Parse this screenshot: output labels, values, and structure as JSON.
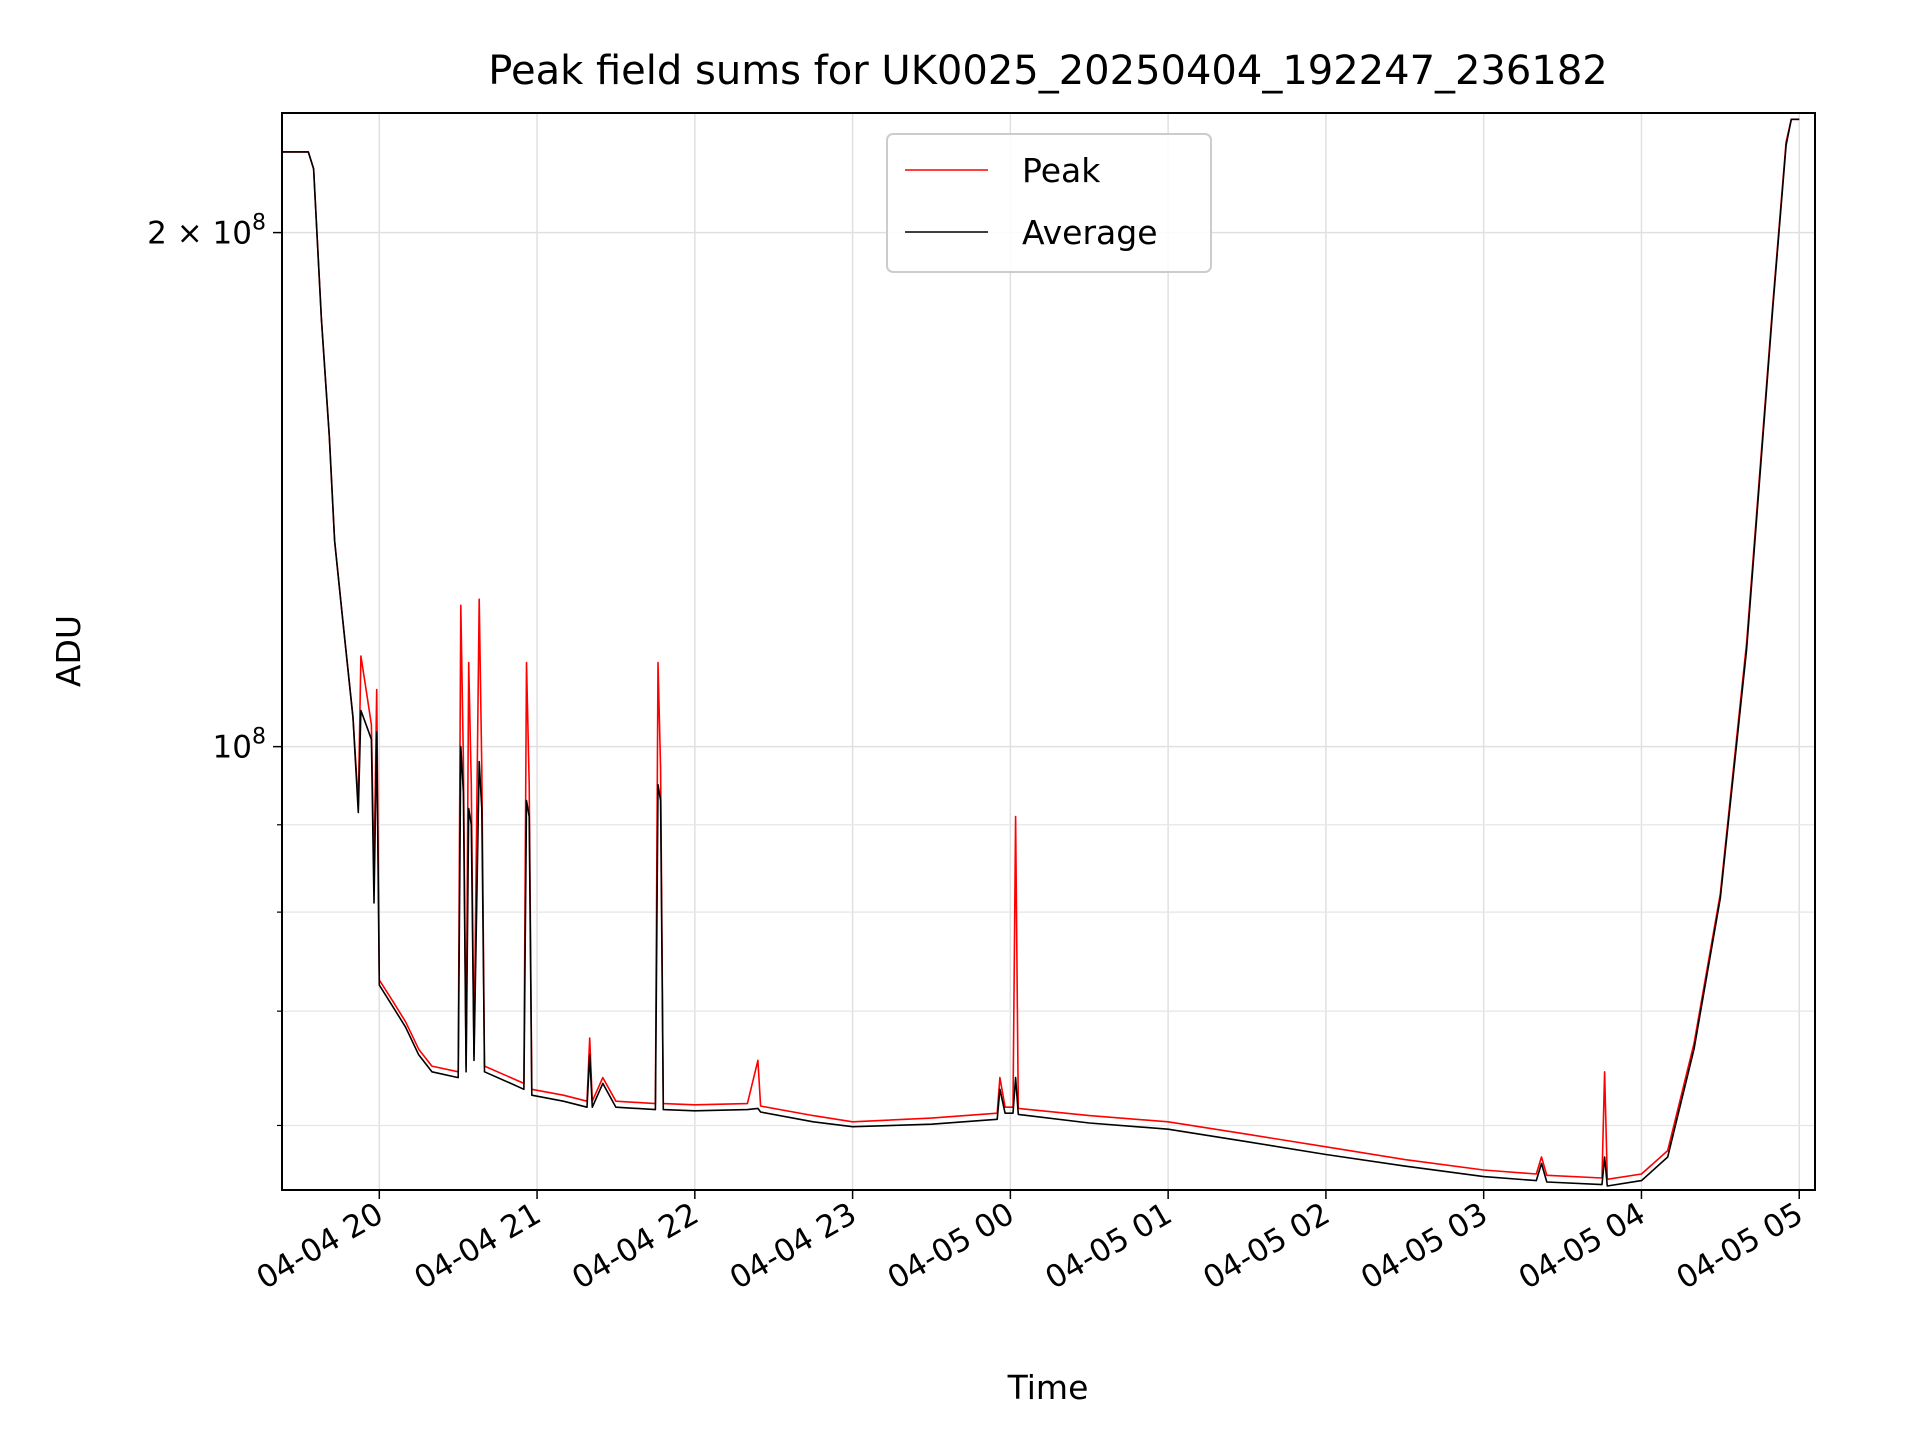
{
  "chart_data": {
    "type": "line",
    "title": "Peak field sums for UK0025_20250404_192247_236182",
    "xlabel": "Time",
    "ylabel": "ADU",
    "yscale": "log",
    "ylim": [
      55000000,
      235000000
    ],
    "xlim": [
      "04-04 19:23",
      "04-05 05:06"
    ],
    "grid": true,
    "legend_position": "top-center",
    "x_ticks": [
      "04-04 20",
      "04-04 21",
      "04-04 22",
      "04-04 23",
      "04-05 00",
      "04-05 01",
      "04-05 02",
      "04-05 03",
      "04-05 04",
      "04-05 05"
    ],
    "y_ticks": [
      {
        "label_base": "10",
        "label_exp": "8",
        "value": 100000000
      },
      {
        "label_prefix": "2 × ",
        "label_base": "10",
        "label_exp": "8",
        "value": 200000000
      }
    ],
    "series": [
      {
        "name": "Peak",
        "color": "#ff0000",
        "points": [
          [
            "04-04 19:23",
            223000000
          ],
          [
            "04-04 19:33",
            223000000
          ],
          [
            "04-04 19:35",
            218000000
          ],
          [
            "04-04 19:38",
            178000000
          ],
          [
            "04-04 19:41",
            152000000
          ],
          [
            "04-04 19:43",
            132000000
          ],
          [
            "04-04 19:46",
            119000000
          ],
          [
            "04-04 19:50",
            104000000
          ],
          [
            "04-04 19:52",
            92500000
          ],
          [
            "04-04 19:53",
            113000000
          ],
          [
            "04-04 19:55",
            108000000
          ],
          [
            "04-04 19:57",
            103000000
          ],
          [
            "04-04 19:58",
            84000000
          ],
          [
            "04-04 19:59",
            108000000
          ],
          [
            "04-04 20:00",
            73000000
          ],
          [
            "04-04 20:05",
            71000000
          ],
          [
            "04-04 20:10",
            69000000
          ],
          [
            "04-04 20:15",
            66500000
          ],
          [
            "04-04 20:20",
            65000000
          ],
          [
            "04-04 20:30",
            64500000
          ],
          [
            "04-04 20:31",
            121000000
          ],
          [
            "04-04 20:32",
            98000000
          ],
          [
            "04-04 20:33",
            65000000
          ],
          [
            "04-04 20:34",
            112000000
          ],
          [
            "04-04 20:35",
            95000000
          ],
          [
            "04-04 20:36",
            66000000
          ],
          [
            "04-04 20:38",
            122000000
          ],
          [
            "04-04 20:39",
            97000000
          ],
          [
            "04-04 20:40",
            65000000
          ],
          [
            "04-04 20:50",
            64000000
          ],
          [
            "04-04 20:55",
            63500000
          ],
          [
            "04-04 20:56",
            112000000
          ],
          [
            "04-04 20:57",
            95000000
          ],
          [
            "04-04 20:58",
            63000000
          ],
          [
            "04-04 21:10",
            62500000
          ],
          [
            "04-04 21:19",
            62000000
          ],
          [
            "04-04 21:20",
            67500000
          ],
          [
            "04-04 21:21",
            62000000
          ],
          [
            "04-04 21:25",
            64000000
          ],
          [
            "04-04 21:30",
            62000000
          ],
          [
            "04-04 21:45",
            61800000
          ],
          [
            "04-04 21:46",
            112000000
          ],
          [
            "04-04 21:47",
            97000000
          ],
          [
            "04-04 21:48",
            61800000
          ],
          [
            "04-04 22:00",
            61700000
          ],
          [
            "04-04 22:20",
            61800000
          ],
          [
            "04-04 22:24",
            65500000
          ],
          [
            "04-04 22:25",
            61600000
          ],
          [
            "04-04 22:45",
            60800000
          ],
          [
            "04-04 23:00",
            60300000
          ],
          [
            "04-04 23:30",
            60600000
          ],
          [
            "04-04 23:55",
            61000000
          ],
          [
            "04-04 23:56",
            64000000
          ],
          [
            "04-04 23:58",
            61500000
          ],
          [
            "04-05 00:01",
            61500000
          ],
          [
            "04-05 00:02",
            91000000
          ],
          [
            "04-05 00:03",
            61400000
          ],
          [
            "04-05 00:30",
            60800000
          ],
          [
            "04-05 01:00",
            60300000
          ],
          [
            "04-05 01:30",
            59300000
          ],
          [
            "04-05 02:00",
            58300000
          ],
          [
            "04-05 02:30",
            57300000
          ],
          [
            "04-05 03:00",
            56500000
          ],
          [
            "04-05 03:20",
            56200000
          ],
          [
            "04-05 03:22",
            57500000
          ],
          [
            "04-05 03:24",
            56100000
          ],
          [
            "04-05 03:45",
            55900000
          ],
          [
            "04-05 03:46",
            64500000
          ],
          [
            "04-05 03:47",
            55800000
          ],
          [
            "04-05 04:00",
            56200000
          ],
          [
            "04-05 04:10",
            58000000
          ],
          [
            "04-05 04:20",
            67000000
          ],
          [
            "04-05 04:30",
            82000000
          ],
          [
            "04-05 04:40",
            115000000
          ],
          [
            "04-05 04:50",
            182000000
          ],
          [
            "04-05 04:55",
            226000000
          ],
          [
            "04-05 04:57",
            233000000
          ],
          [
            "04-05 05:00",
            233000000
          ]
        ]
      },
      {
        "name": "Average",
        "color": "#000000",
        "points": [
          [
            "04-04 19:23",
            223000000
          ],
          [
            "04-04 19:33",
            223000000
          ],
          [
            "04-04 19:35",
            218000000
          ],
          [
            "04-04 19:38",
            178000000
          ],
          [
            "04-04 19:41",
            152000000
          ],
          [
            "04-04 19:43",
            132000000
          ],
          [
            "04-04 19:46",
            119000000
          ],
          [
            "04-04 19:50",
            104000000
          ],
          [
            "04-04 19:52",
            91500000
          ],
          [
            "04-04 19:53",
            105000000
          ],
          [
            "04-04 19:55",
            103000000
          ],
          [
            "04-04 19:57",
            101000000
          ],
          [
            "04-04 19:58",
            81000000
          ],
          [
            "04-04 19:59",
            102000000
          ],
          [
            "04-04 20:00",
            72500000
          ],
          [
            "04-04 20:05",
            70500000
          ],
          [
            "04-04 20:10",
            68500000
          ],
          [
            "04-04 20:15",
            66000000
          ],
          [
            "04-04 20:20",
            64500000
          ],
          [
            "04-04 20:30",
            64000000
          ],
          [
            "04-04 20:31",
            100000000
          ],
          [
            "04-04 20:32",
            94000000
          ],
          [
            "04-04 20:33",
            64500000
          ],
          [
            "04-04 20:34",
            92000000
          ],
          [
            "04-04 20:35",
            90000000
          ],
          [
            "04-04 20:36",
            65500000
          ],
          [
            "04-04 20:38",
            98000000
          ],
          [
            "04-04 20:39",
            92000000
          ],
          [
            "04-04 20:40",
            64500000
          ],
          [
            "04-04 20:50",
            63500000
          ],
          [
            "04-04 20:55",
            63000000
          ],
          [
            "04-04 20:56",
            93000000
          ],
          [
            "04-04 20:57",
            91000000
          ],
          [
            "04-04 20:58",
            62500000
          ],
          [
            "04-04 21:10",
            62000000
          ],
          [
            "04-04 21:19",
            61500000
          ],
          [
            "04-04 21:20",
            66000000
          ],
          [
            "04-04 21:21",
            61500000
          ],
          [
            "04-04 21:25",
            63500000
          ],
          [
            "04-04 21:30",
            61500000
          ],
          [
            "04-04 21:45",
            61300000
          ],
          [
            "04-04 21:46",
            95000000
          ],
          [
            "04-04 21:47",
            93000000
          ],
          [
            "04-04 21:48",
            61300000
          ],
          [
            "04-04 22:00",
            61200000
          ],
          [
            "04-04 22:20",
            61300000
          ],
          [
            "04-04 22:24",
            61400000
          ],
          [
            "04-04 22:25",
            61100000
          ],
          [
            "04-04 22:45",
            60300000
          ],
          [
            "04-04 23:00",
            59900000
          ],
          [
            "04-04 23:30",
            60100000
          ],
          [
            "04-04 23:55",
            60500000
          ],
          [
            "04-04 23:56",
            63000000
          ],
          [
            "04-04 23:58",
            61000000
          ],
          [
            "04-05 00:01",
            61000000
          ],
          [
            "04-05 00:02",
            64000000
          ],
          [
            "04-05 00:03",
            60900000
          ],
          [
            "04-05 00:30",
            60200000
          ],
          [
            "04-05 01:00",
            59700000
          ],
          [
            "04-05 01:30",
            58700000
          ],
          [
            "04-05 02:00",
            57700000
          ],
          [
            "04-05 02:30",
            56800000
          ],
          [
            "04-05 03:00",
            56000000
          ],
          [
            "04-05 03:20",
            55700000
          ],
          [
            "04-05 03:22",
            57000000
          ],
          [
            "04-05 03:24",
            55600000
          ],
          [
            "04-05 03:45",
            55400000
          ],
          [
            "04-05 03:46",
            57500000
          ],
          [
            "04-05 03:47",
            55300000
          ],
          [
            "04-05 04:00",
            55700000
          ],
          [
            "04-05 04:10",
            57500000
          ],
          [
            "04-05 04:20",
            66500000
          ],
          [
            "04-05 04:30",
            81500000
          ],
          [
            "04-05 04:40",
            114000000
          ],
          [
            "04-05 04:50",
            181000000
          ],
          [
            "04-05 04:55",
            225000000
          ],
          [
            "04-05 04:57",
            233000000
          ],
          [
            "04-05 05:00",
            233000000
          ]
        ]
      }
    ]
  }
}
